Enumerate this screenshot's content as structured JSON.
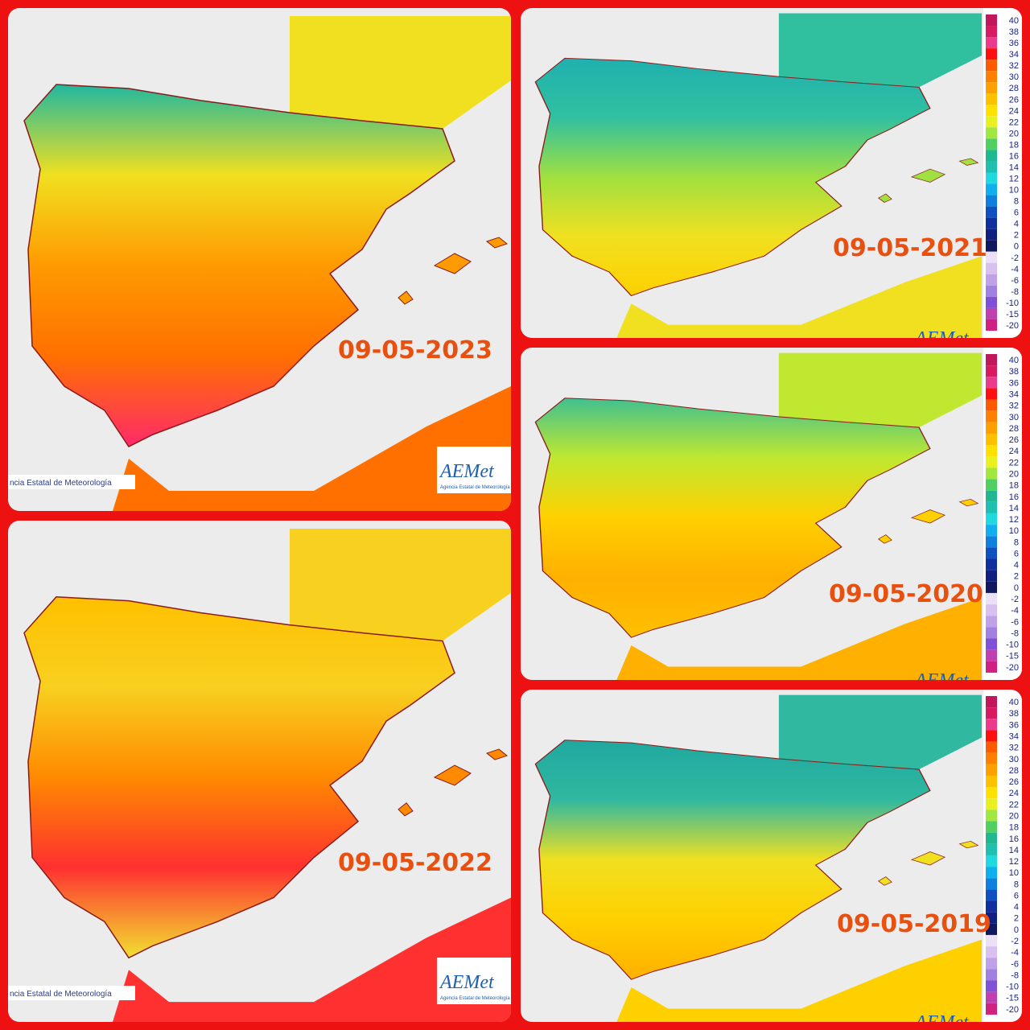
{
  "panels": [
    {
      "date": "09-05-2023",
      "credit": "ncia Estatal de Meteorología",
      "logo": "AEMet",
      "logo_sub": "Agencia Estatal de Meteorología"
    },
    {
      "date": "09-05-2022",
      "credit": "ncia Estatal de Meteorología",
      "logo": "AEMet",
      "logo_sub": "Agencia Estatal de Meteorología"
    },
    {
      "date": "09-05-2021",
      "logo": "AEMet"
    },
    {
      "date": "09-05-2020",
      "logo": "AEMet"
    },
    {
      "date": "09-05-2019",
      "logo": "AEMet"
    }
  ],
  "legend": [
    {
      "value": 40,
      "color": "#c2185b"
    },
    {
      "value": 38,
      "color": "#d81b60"
    },
    {
      "value": 36,
      "color": "#ec3a8c"
    },
    {
      "value": 34,
      "color": "#ff1010"
    },
    {
      "value": 32,
      "color": "#ff5a00"
    },
    {
      "value": 30,
      "color": "#ff8000"
    },
    {
      "value": 28,
      "color": "#ffa000"
    },
    {
      "value": 26,
      "color": "#ffc000"
    },
    {
      "value": 24,
      "color": "#ffe000"
    },
    {
      "value": 22,
      "color": "#e8f020"
    },
    {
      "value": 20,
      "color": "#a0e840"
    },
    {
      "value": 18,
      "color": "#50d060"
    },
    {
      "value": 16,
      "color": "#20b890"
    },
    {
      "value": 14,
      "color": "#20c0b0"
    },
    {
      "value": 12,
      "color": "#20d8e0"
    },
    {
      "value": 10,
      "color": "#10b0f0"
    },
    {
      "value": 8,
      "color": "#1080e0"
    },
    {
      "value": 6,
      "color": "#1050c0"
    },
    {
      "value": 4,
      "color": "#1030a0"
    },
    {
      "value": 2,
      "color": "#102080"
    },
    {
      "value": 0,
      "color": "#101860"
    },
    {
      "value": -2,
      "color": "#ece0f8"
    },
    {
      "value": -4,
      "color": "#d8c0f0"
    },
    {
      "value": -6,
      "color": "#c0a0e8"
    },
    {
      "value": -8,
      "color": "#a080e0"
    },
    {
      "value": -10,
      "color": "#8050d8"
    },
    {
      "value": -15,
      "color": "#c040b0"
    },
    {
      "value": -20,
      "color": "#d02080"
    }
  ]
}
